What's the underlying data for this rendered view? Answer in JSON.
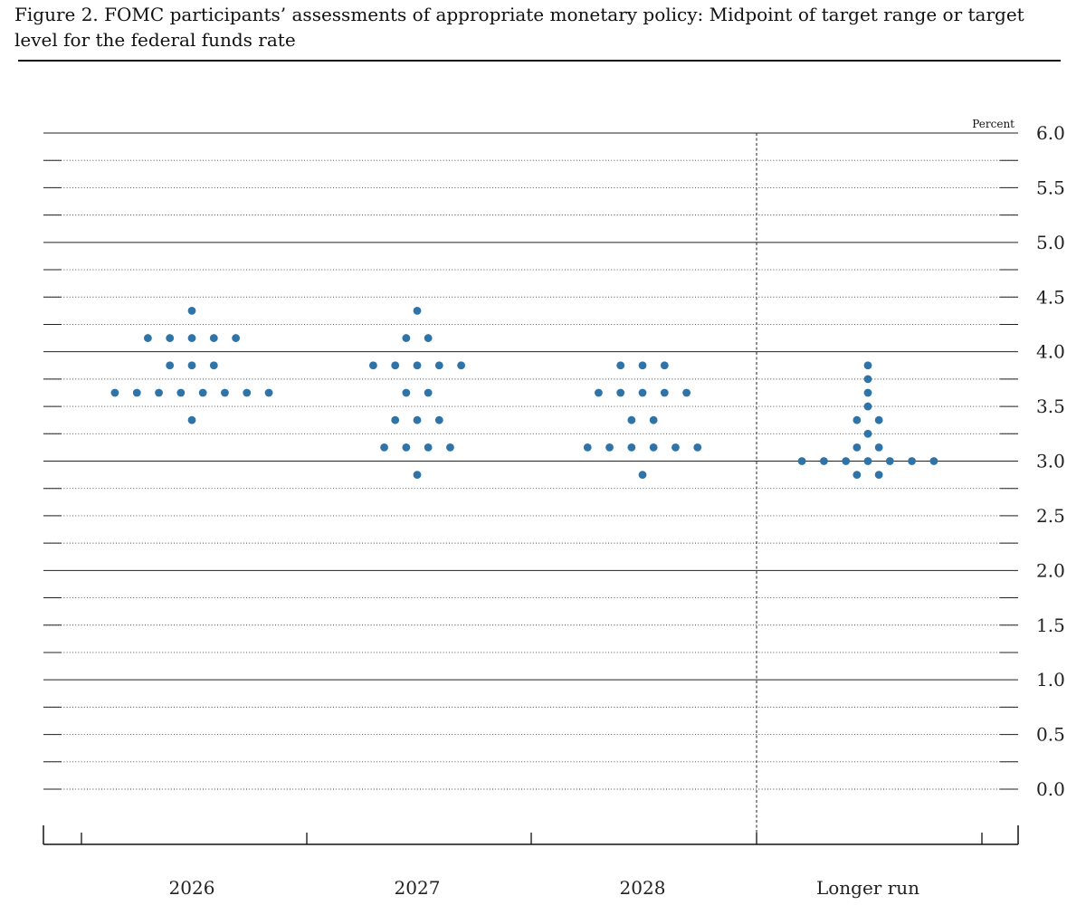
{
  "figure": {
    "title": "Figure 2. FOMC participants’ assessments of appropriate monetary policy: Midpoint of target range or target level for the federal funds rate"
  },
  "chart_data": {
    "type": "scatter",
    "title": "Figure 2. FOMC participants’ assessments of appropriate monetary policy: Midpoint of target range or target level for the federal funds rate",
    "ylabel": "Percent",
    "ylim": [
      0,
      6
    ],
    "yticks": [
      "0.0",
      "0.5",
      "1.0",
      "1.5",
      "2.0",
      "2.5",
      "3.0",
      "3.5",
      "4.0",
      "4.5",
      "5.0",
      "5.5",
      "6.0"
    ],
    "categories": [
      "2026",
      "2027",
      "2028",
      "Longer run"
    ],
    "dot_color": "#2f74a8",
    "grid": "dotted every 0.25, solid every 1.0",
    "series": [
      {
        "category": "2026",
        "values": [
          3.375,
          3.625,
          3.625,
          3.625,
          3.625,
          3.625,
          3.625,
          3.625,
          3.625,
          3.875,
          3.875,
          3.875,
          4.125,
          4.125,
          4.125,
          4.125,
          4.125,
          4.375
        ]
      },
      {
        "category": "2027",
        "values": [
          2.875,
          3.125,
          3.125,
          3.125,
          3.125,
          3.375,
          3.375,
          3.375,
          3.625,
          3.625,
          3.875,
          3.875,
          3.875,
          3.875,
          3.875,
          4.125,
          4.125,
          4.375
        ]
      },
      {
        "category": "2028",
        "values": [
          2.875,
          3.125,
          3.125,
          3.125,
          3.125,
          3.125,
          3.125,
          3.375,
          3.375,
          3.625,
          3.625,
          3.625,
          3.625,
          3.625,
          3.875,
          3.875,
          3.875
        ]
      },
      {
        "category": "Longer run",
        "values": [
          2.875,
          2.875,
          3.0,
          3.0,
          3.0,
          3.0,
          3.0,
          3.0,
          3.0,
          3.125,
          3.125,
          3.25,
          3.375,
          3.375,
          3.5,
          3.625,
          3.75,
          3.875
        ]
      }
    ]
  }
}
